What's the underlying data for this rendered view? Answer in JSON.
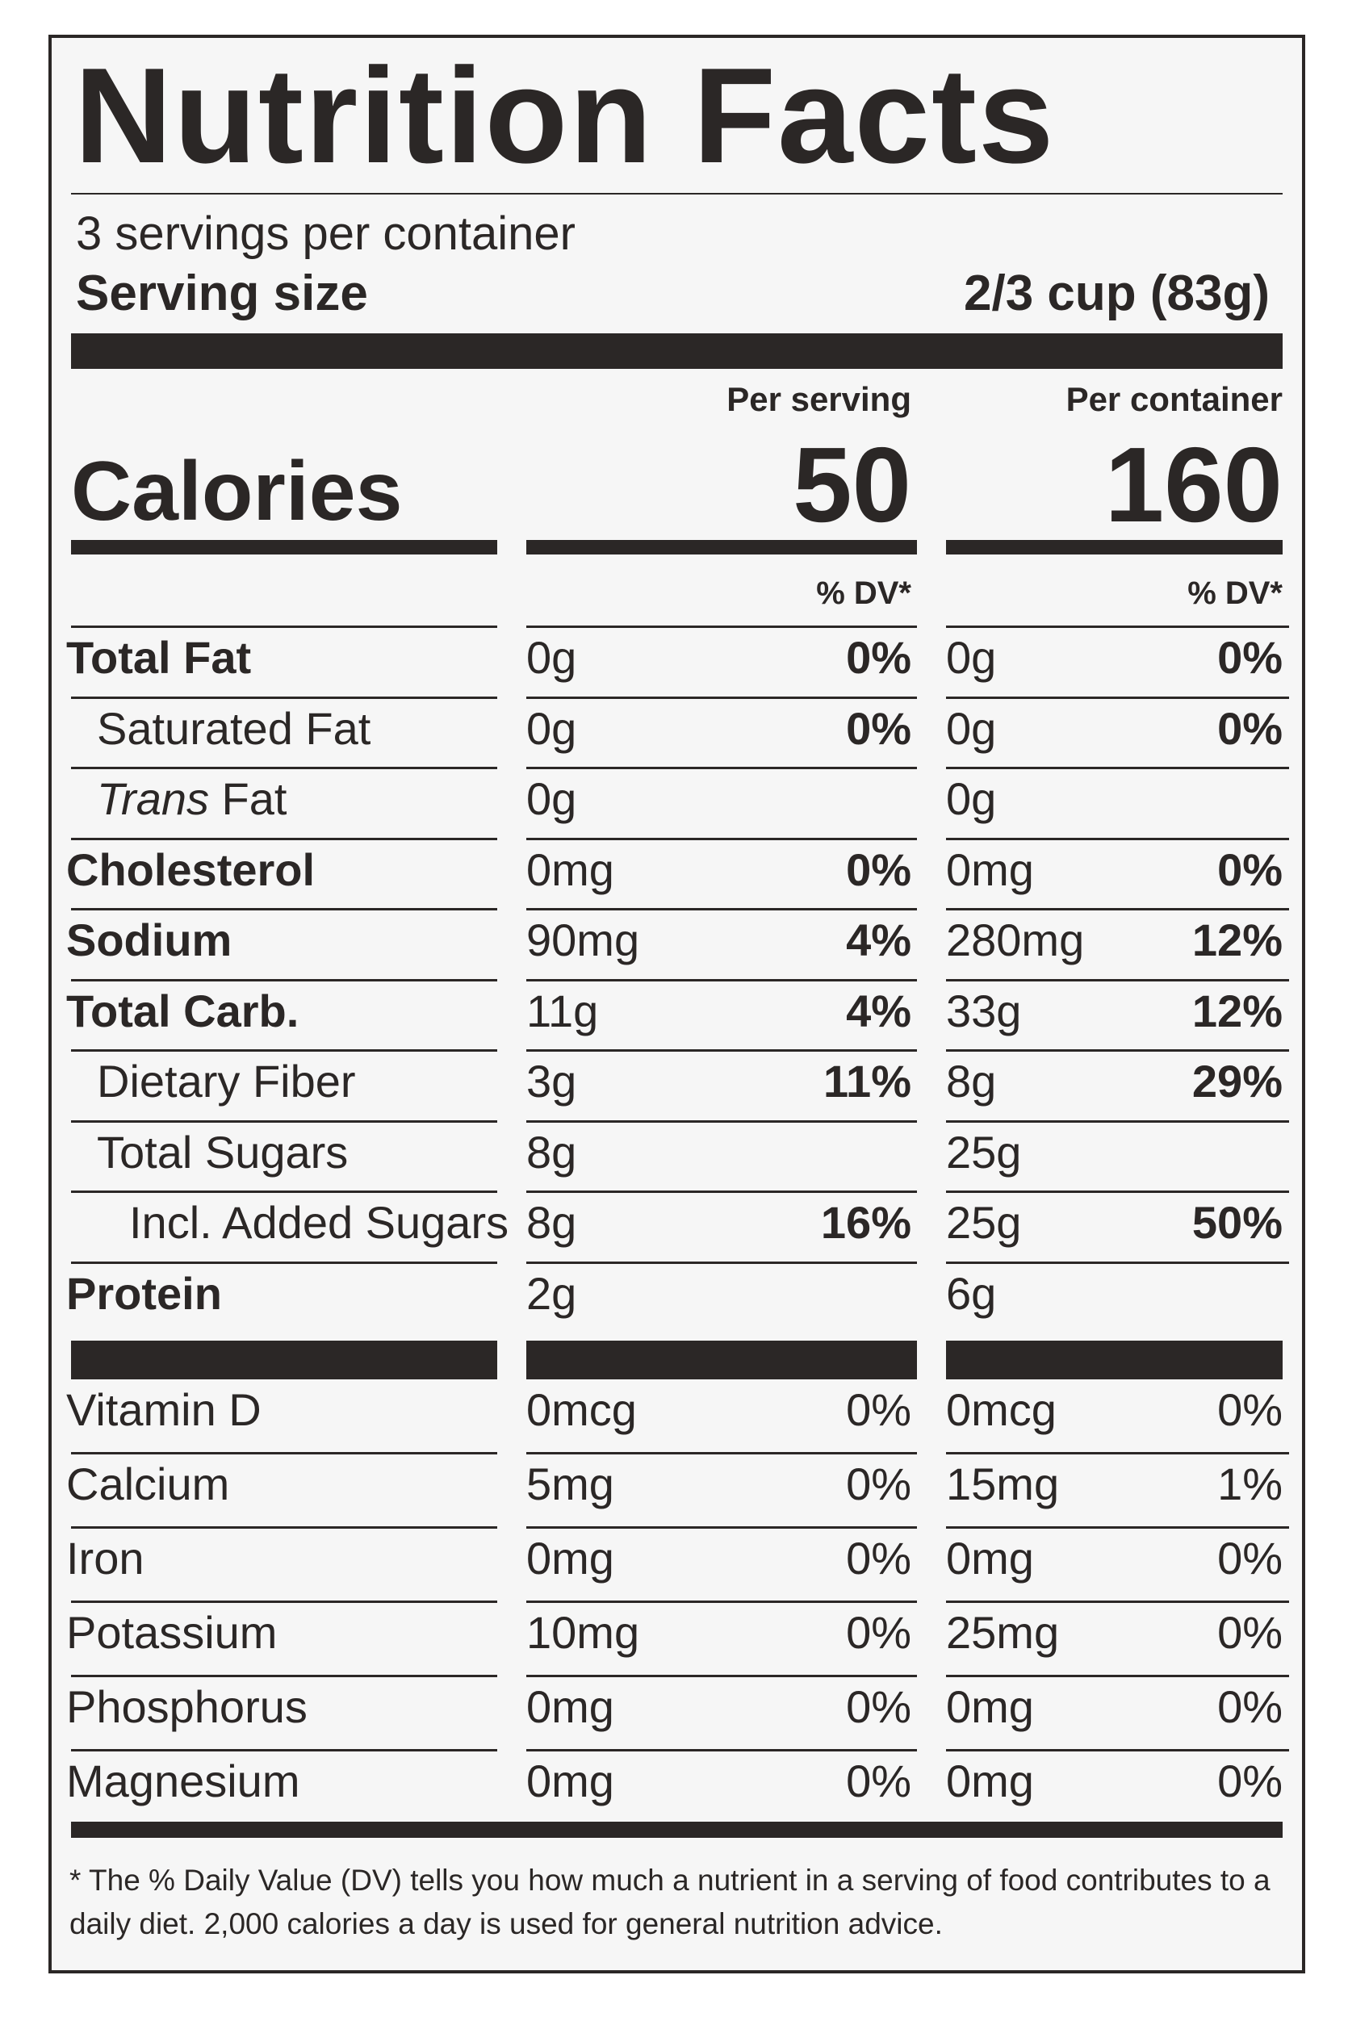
{
  "title": "Nutrition Facts",
  "servings_per_container": "3 servings per container",
  "serving_size_label": "Serving size",
  "serving_size_value": "2/3 cup (83g)",
  "per_serving_label": "Per serving",
  "per_container_label": "Per container",
  "calories_label": "Calories",
  "calories_per_serving": "50",
  "calories_per_container": "160",
  "dv_header": "% DV*",
  "nutrients": [
    {
      "name": "Total Fat",
      "serving": "0g",
      "serving_dv": "0%",
      "container": "0g",
      "container_dv": "0%"
    },
    {
      "name": "Saturated Fat",
      "serving": "0g",
      "serving_dv": "0%",
      "container": "0g",
      "container_dv": "0%"
    },
    {
      "name_italic": "Trans",
      "name": " Fat",
      "serving": "0g",
      "serving_dv": "",
      "container": "0g",
      "container_dv": ""
    },
    {
      "name": "Cholesterol",
      "serving": "0mg",
      "serving_dv": "0%",
      "container": "0mg",
      "container_dv": "0%"
    },
    {
      "name": "Sodium",
      "serving": "90mg",
      "serving_dv": "4%",
      "container": "280mg",
      "container_dv": "12%"
    },
    {
      "name": "Total Carb.",
      "serving": "11g",
      "serving_dv": "4%",
      "container": "33g",
      "container_dv": "12%"
    },
    {
      "name": "Dietary Fiber",
      "serving": "3g",
      "serving_dv": "11%",
      "container": "8g",
      "container_dv": "29%"
    },
    {
      "name": "Total Sugars",
      "serving": "8g",
      "serving_dv": "",
      "container": "25g",
      "container_dv": ""
    },
    {
      "name": "Incl. Added Sugars",
      "serving": "8g",
      "serving_dv": "16%",
      "container": "25g",
      "container_dv": "50%"
    },
    {
      "name": "Protein",
      "serving": "2g",
      "serving_dv": "",
      "container": "6g",
      "container_dv": ""
    }
  ],
  "micronutrients": [
    {
      "name": "Vitamin D",
      "serving": "0mcg",
      "serving_dv": "0%",
      "container": "0mcg",
      "container_dv": "0%"
    },
    {
      "name": "Calcium",
      "serving": "5mg",
      "serving_dv": "0%",
      "container": "15mg",
      "container_dv": "1%"
    },
    {
      "name": "Iron",
      "serving": "0mg",
      "serving_dv": "0%",
      "container": "0mg",
      "container_dv": "0%"
    },
    {
      "name": "Potassium",
      "serving": "10mg",
      "serving_dv": "0%",
      "container": "25mg",
      "container_dv": "0%"
    },
    {
      "name": "Phosphorus",
      "serving": "0mg",
      "serving_dv": "0%",
      "container": "0mg",
      "container_dv": "0%"
    },
    {
      "name": "Magnesium",
      "serving": "0mg",
      "serving_dv": "0%",
      "container": "0mg",
      "container_dv": "0%"
    }
  ],
  "footnote": "* The % Daily Value (DV) tells you how much a nutrient in a serving of food contributes to a daily diet. 2,000 calories a day is used for general nutrition advice."
}
